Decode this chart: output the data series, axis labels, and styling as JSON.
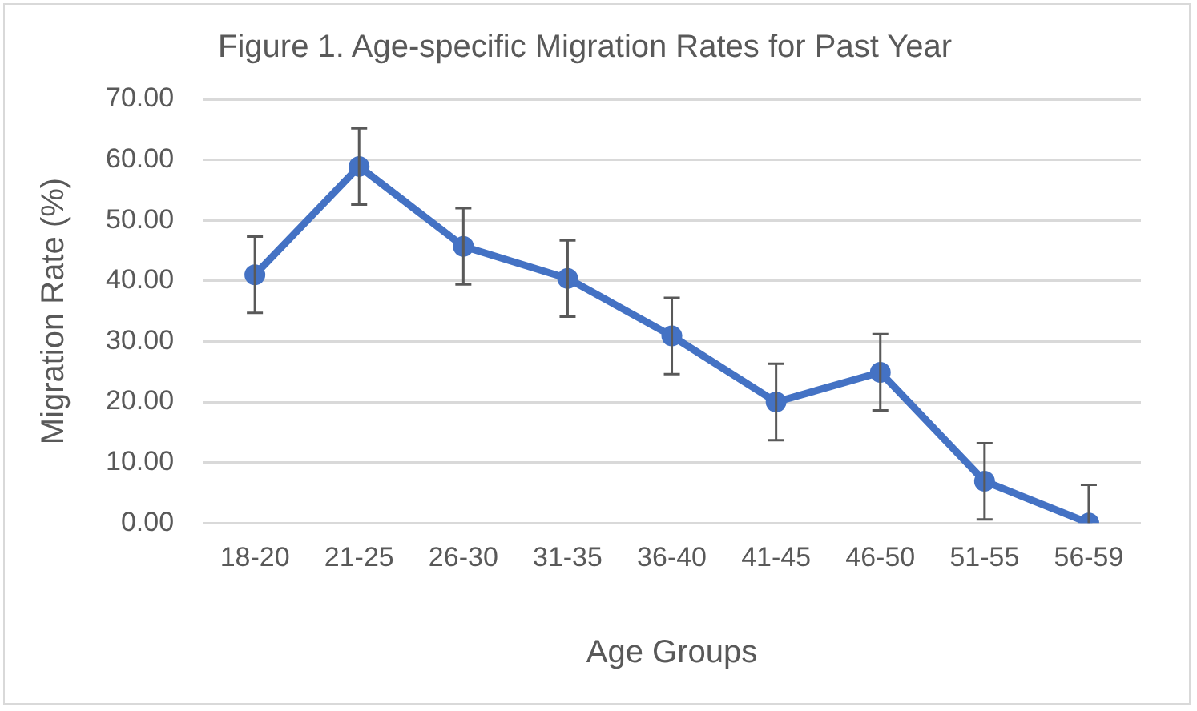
{
  "chart_data": {
    "type": "line",
    "title": "Figure 1. Age-specific Migration Rates for Past Year",
    "xlabel": "Age Groups",
    "ylabel": "Migration Rate (%)",
    "categories": [
      "18-20",
      "21-25",
      "26-30",
      "31-35",
      "36-40",
      "41-45",
      "46-50",
      "51-55",
      "56-59"
    ],
    "series": [
      {
        "color": "#4472c4",
        "values": [
          41.0,
          58.9,
          45.7,
          40.4,
          30.9,
          20.0,
          24.9,
          6.9,
          0
        ],
        "errors": [
          6.3,
          6.3,
          6.3,
          6.3,
          6.3,
          6.3,
          6.3,
          6.3,
          [
            0,
            6.3
          ]
        ]
      }
    ],
    "ylim": [
      0,
      70
    ],
    "yticks": [
      {
        "value": 0,
        "label": "0.00"
      },
      {
        "value": 10,
        "label": "10.00"
      },
      {
        "value": 20,
        "label": "20.00"
      },
      {
        "value": 30,
        "label": "30.00"
      },
      {
        "value": 40,
        "label": "40.00"
      },
      {
        "value": 50,
        "label": "50.00"
      },
      {
        "value": 60,
        "label": "60.00"
      },
      {
        "value": 70,
        "label": "70.00"
      }
    ],
    "grid": "y",
    "marker": "circle",
    "line_style": "solid",
    "legend": false
  }
}
